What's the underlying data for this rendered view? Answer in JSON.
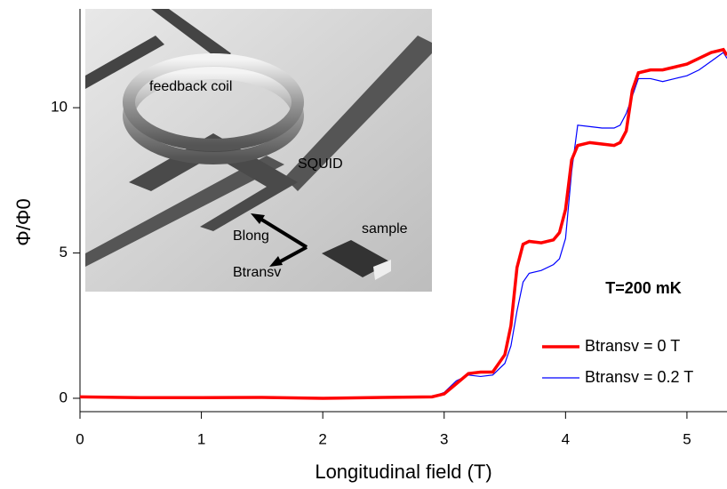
{
  "chart_data": {
    "type": "line",
    "xlabel": "Longitudinal field (T)",
    "ylabel": "Φ/Φ0",
    "annotation": "T=200 mK",
    "inset_labels": [
      "feedback coil",
      "SQUID",
      "sample",
      "Blong",
      "Btransv"
    ],
    "x": [
      0,
      0.5,
      1,
      1.5,
      2,
      2.5,
      2.9,
      3.0,
      3.1,
      3.2,
      3.3,
      3.4,
      3.5,
      3.55,
      3.6,
      3.65,
      3.7,
      3.8,
      3.9,
      3.95,
      4.0,
      4.05,
      4.1,
      4.2,
      4.3,
      4.4,
      4.45,
      4.5,
      4.55,
      4.6,
      4.7,
      4.8,
      4.9,
      5.0,
      5.1,
      5.2,
      5.3,
      5.33
    ],
    "series": [
      {
        "name": "Btransv = 0 T",
        "color": "#ff0000",
        "values": [
          0.05,
          0.02,
          0.02,
          0.03,
          0,
          0.03,
          0.05,
          0.15,
          0.5,
          0.85,
          0.9,
          0.9,
          1.5,
          2.5,
          4.5,
          5.3,
          5.4,
          5.35,
          5.45,
          5.7,
          6.5,
          8.2,
          8.7,
          8.8,
          8.75,
          8.7,
          8.8,
          9.2,
          10.6,
          11.2,
          11.3,
          11.3,
          11.4,
          11.5,
          11.7,
          11.9,
          12.0,
          11.8
        ]
      },
      {
        "name": "Btransv = 0.2 T",
        "color": "#0000ff",
        "values": [
          0.05,
          0.02,
          0.02,
          0.03,
          0.02,
          0.03,
          0.05,
          0.2,
          0.6,
          0.8,
          0.75,
          0.8,
          1.2,
          1.8,
          3.0,
          4.0,
          4.3,
          4.4,
          4.6,
          4.8,
          5.5,
          7.8,
          9.4,
          9.35,
          9.3,
          9.3,
          9.4,
          9.8,
          10.4,
          11.0,
          11.0,
          10.9,
          11.0,
          11.1,
          11.3,
          11.6,
          11.9,
          11.7
        ]
      }
    ],
    "xlim": [
      0,
      5.33
    ],
    "xticks": [
      0,
      1,
      2,
      3,
      4,
      5
    ],
    "ylim": [
      -0.46,
      13.4
    ],
    "yticks": [
      0,
      5,
      10
    ]
  }
}
